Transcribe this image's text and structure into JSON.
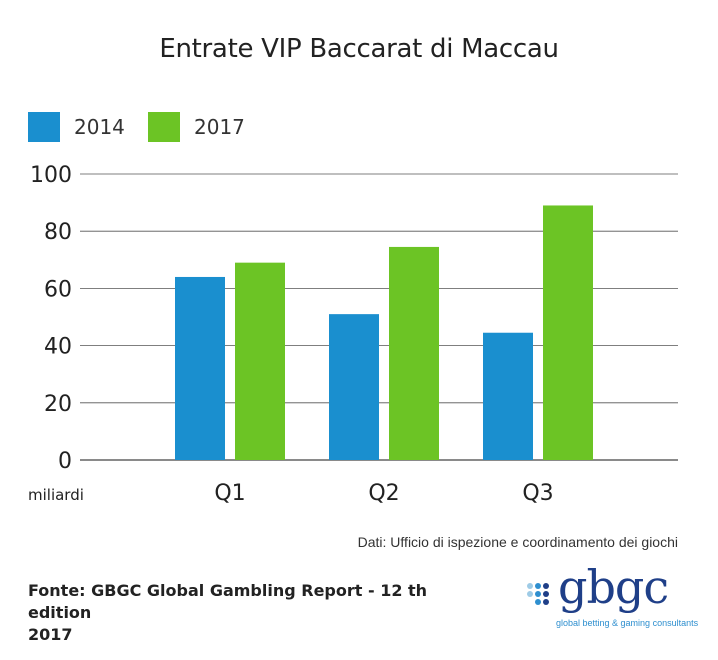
{
  "chart_data": {
    "type": "bar",
    "title": "Entrate VIP Baccarat di Maccau",
    "categories": [
      "Q1",
      "Q2",
      "Q3"
    ],
    "series": [
      {
        "name": "2014",
        "values": [
          64,
          51,
          44.5
        ],
        "color": "#1a8fcf"
      },
      {
        "name": "2017",
        "values": [
          69,
          74.5,
          89
        ],
        "color": "#6cc425"
      }
    ],
    "ylim": [
      0,
      100
    ],
    "yticks": [
      "0",
      "20",
      "40",
      "60",
      "80",
      "100"
    ],
    "yunit_label": "miliardi",
    "grid": true,
    "legend_position": "top-left"
  },
  "source_note": "Dati: Ufficio di ispezione e coordinamento dei giochi",
  "fonte_line1": "Fonte: GBGC Global Gambling Report - 12 th edition",
  "fonte_line2": "2017",
  "logo": {
    "wordmark": "gbgc",
    "tagline": "global betting & gaming consultants",
    "colors": {
      "dark": "#1f3f88",
      "light": "#2e8fcf",
      "pale": "#9ecbe6"
    }
  }
}
